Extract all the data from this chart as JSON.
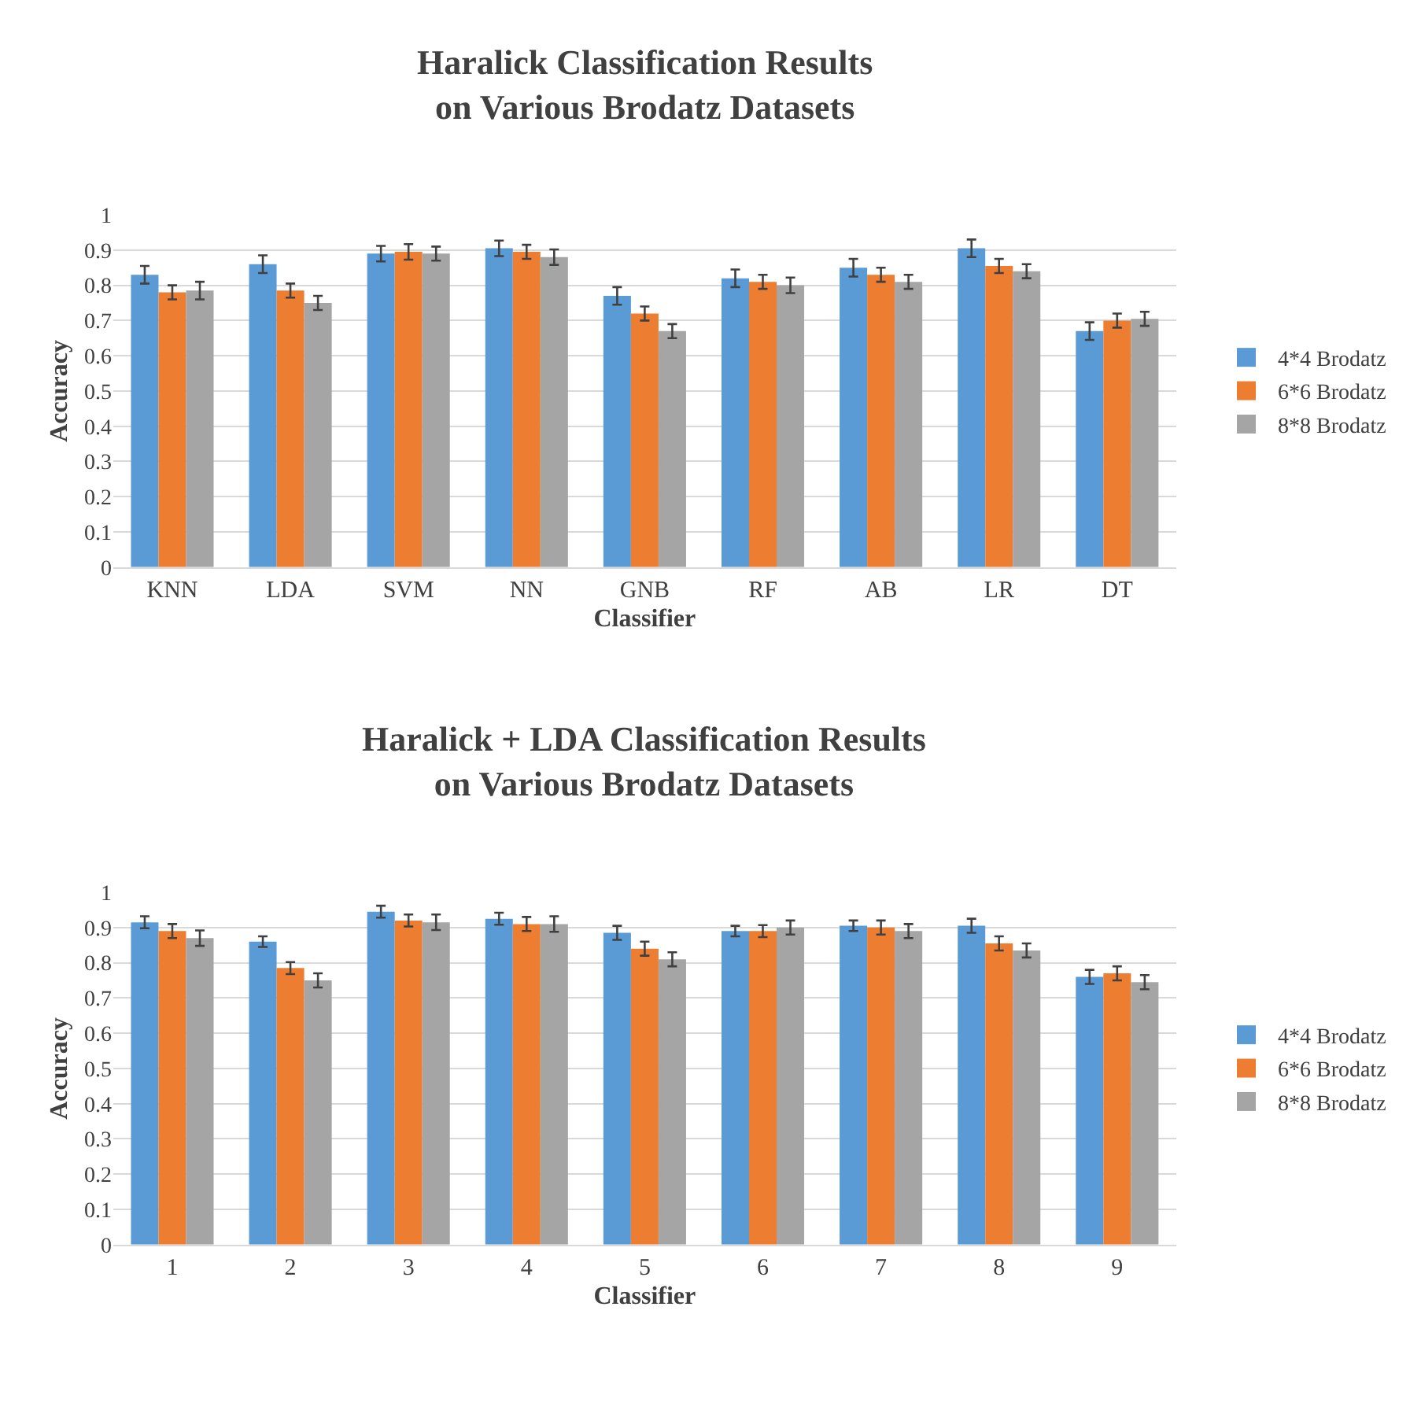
{
  "chart_data": [
    {
      "type": "bar",
      "title": "Haralick Classification Results\non Various Brodatz Datasets",
      "xlabel": "Classifier",
      "ylabel": "Accuracy",
      "categories": [
        "KNN",
        "LDA",
        "SVM",
        "NN",
        "GNB",
        "RF",
        "AB",
        "LR",
        "DT"
      ],
      "series": [
        {
          "name": "4*4 Brodatz",
          "color": "#5b9bd5",
          "values": [
            0.83,
            0.86,
            0.89,
            0.905,
            0.77,
            0.82,
            0.85,
            0.905,
            0.67
          ],
          "errors": [
            0.025,
            0.025,
            0.022,
            0.022,
            0.025,
            0.025,
            0.025,
            0.025,
            0.025
          ]
        },
        {
          "name": "6*6 Brodatz",
          "color": "#ed7d31",
          "values": [
            0.78,
            0.785,
            0.895,
            0.895,
            0.72,
            0.81,
            0.83,
            0.855,
            0.7
          ],
          "errors": [
            0.02,
            0.02,
            0.022,
            0.02,
            0.02,
            0.02,
            0.02,
            0.02,
            0.02
          ]
        },
        {
          "name": "8*8 Brodatz",
          "color": "#a5a5a5",
          "values": [
            0.785,
            0.75,
            0.89,
            0.88,
            0.67,
            0.8,
            0.81,
            0.84,
            0.705
          ],
          "errors": [
            0.025,
            0.02,
            0.02,
            0.022,
            0.02,
            0.022,
            0.02,
            0.02,
            0.02
          ]
        }
      ],
      "ylim": [
        0,
        1
      ],
      "yticks": [
        0,
        0.1,
        0.2,
        0.3,
        0.4,
        0.5,
        0.6,
        0.7,
        0.8,
        0.9,
        1
      ],
      "grid": "y",
      "legend": "right"
    },
    {
      "type": "bar",
      "title": "Haralick + LDA Classification Results\non Various Brodatz Datasets",
      "xlabel": "Classifier",
      "ylabel": "Accuracy",
      "categories": [
        "1",
        "2",
        "3",
        "4",
        "5",
        "6",
        "7",
        "8",
        "9"
      ],
      "series": [
        {
          "name": "4*4 Brodatz",
          "color": "#5b9bd5",
          "values": [
            0.915,
            0.86,
            0.945,
            0.925,
            0.885,
            0.89,
            0.905,
            0.905,
            0.76
          ],
          "errors": [
            0.017,
            0.015,
            0.017,
            0.017,
            0.02,
            0.015,
            0.015,
            0.02,
            0.02
          ]
        },
        {
          "name": "6*6 Brodatz",
          "color": "#ed7d31",
          "values": [
            0.89,
            0.785,
            0.92,
            0.91,
            0.84,
            0.89,
            0.9,
            0.855,
            0.77
          ],
          "errors": [
            0.02,
            0.017,
            0.017,
            0.02,
            0.02,
            0.017,
            0.02,
            0.02,
            0.02
          ]
        },
        {
          "name": "8*8 Brodatz",
          "color": "#a5a5a5",
          "values": [
            0.87,
            0.75,
            0.915,
            0.91,
            0.81,
            0.9,
            0.89,
            0.835,
            0.745
          ],
          "errors": [
            0.022,
            0.02,
            0.022,
            0.022,
            0.02,
            0.02,
            0.02,
            0.02,
            0.02
          ]
        }
      ],
      "ylim": [
        0,
        1
      ],
      "yticks": [
        0,
        0.1,
        0.2,
        0.3,
        0.4,
        0.5,
        0.6,
        0.7,
        0.8,
        0.9,
        1
      ],
      "grid": "y",
      "legend": "right"
    }
  ]
}
